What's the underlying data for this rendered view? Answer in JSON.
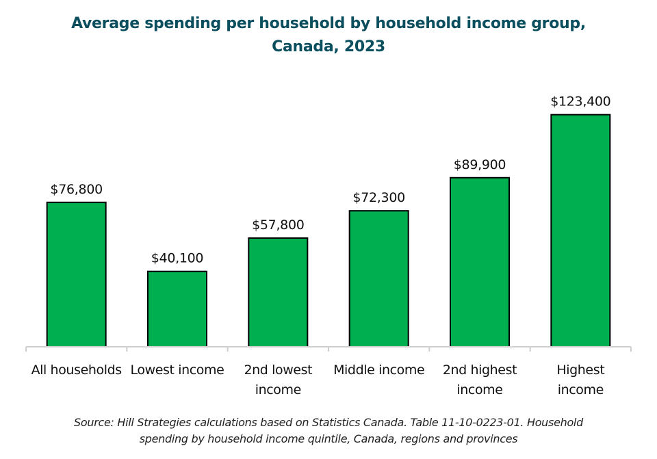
{
  "chart_data": {
    "type": "bar",
    "title_lines": [
      "Average spending per household by household income group,",
      "Canada, 2023"
    ],
    "categories": [
      [
        "All households"
      ],
      [
        "Lowest income"
      ],
      [
        "2nd lowest",
        "income"
      ],
      [
        "Middle income"
      ],
      [
        "2nd highest",
        "income"
      ],
      [
        "Highest",
        "income"
      ]
    ],
    "values": [
      76800,
      40100,
      57800,
      72300,
      89900,
      123400
    ],
    "data_labels": [
      "$76,800",
      "$40,100",
      "$57,800",
      "$72,300",
      "$89,900",
      "$123,400"
    ],
    "xlabel": "",
    "ylabel": "",
    "ylim": [
      0,
      148000
    ],
    "y_axis_visible": false,
    "grid": false,
    "bar_color": "#00b050",
    "bar_outline_color": "#000000",
    "title_color": "#0b4f5e",
    "source_lines": [
      "Source: Hill Strategies calculations based on Statistics Canada. Table 11-10-0223-01. Household",
      "spending by household income quintile, Canada, regions and provinces"
    ]
  }
}
